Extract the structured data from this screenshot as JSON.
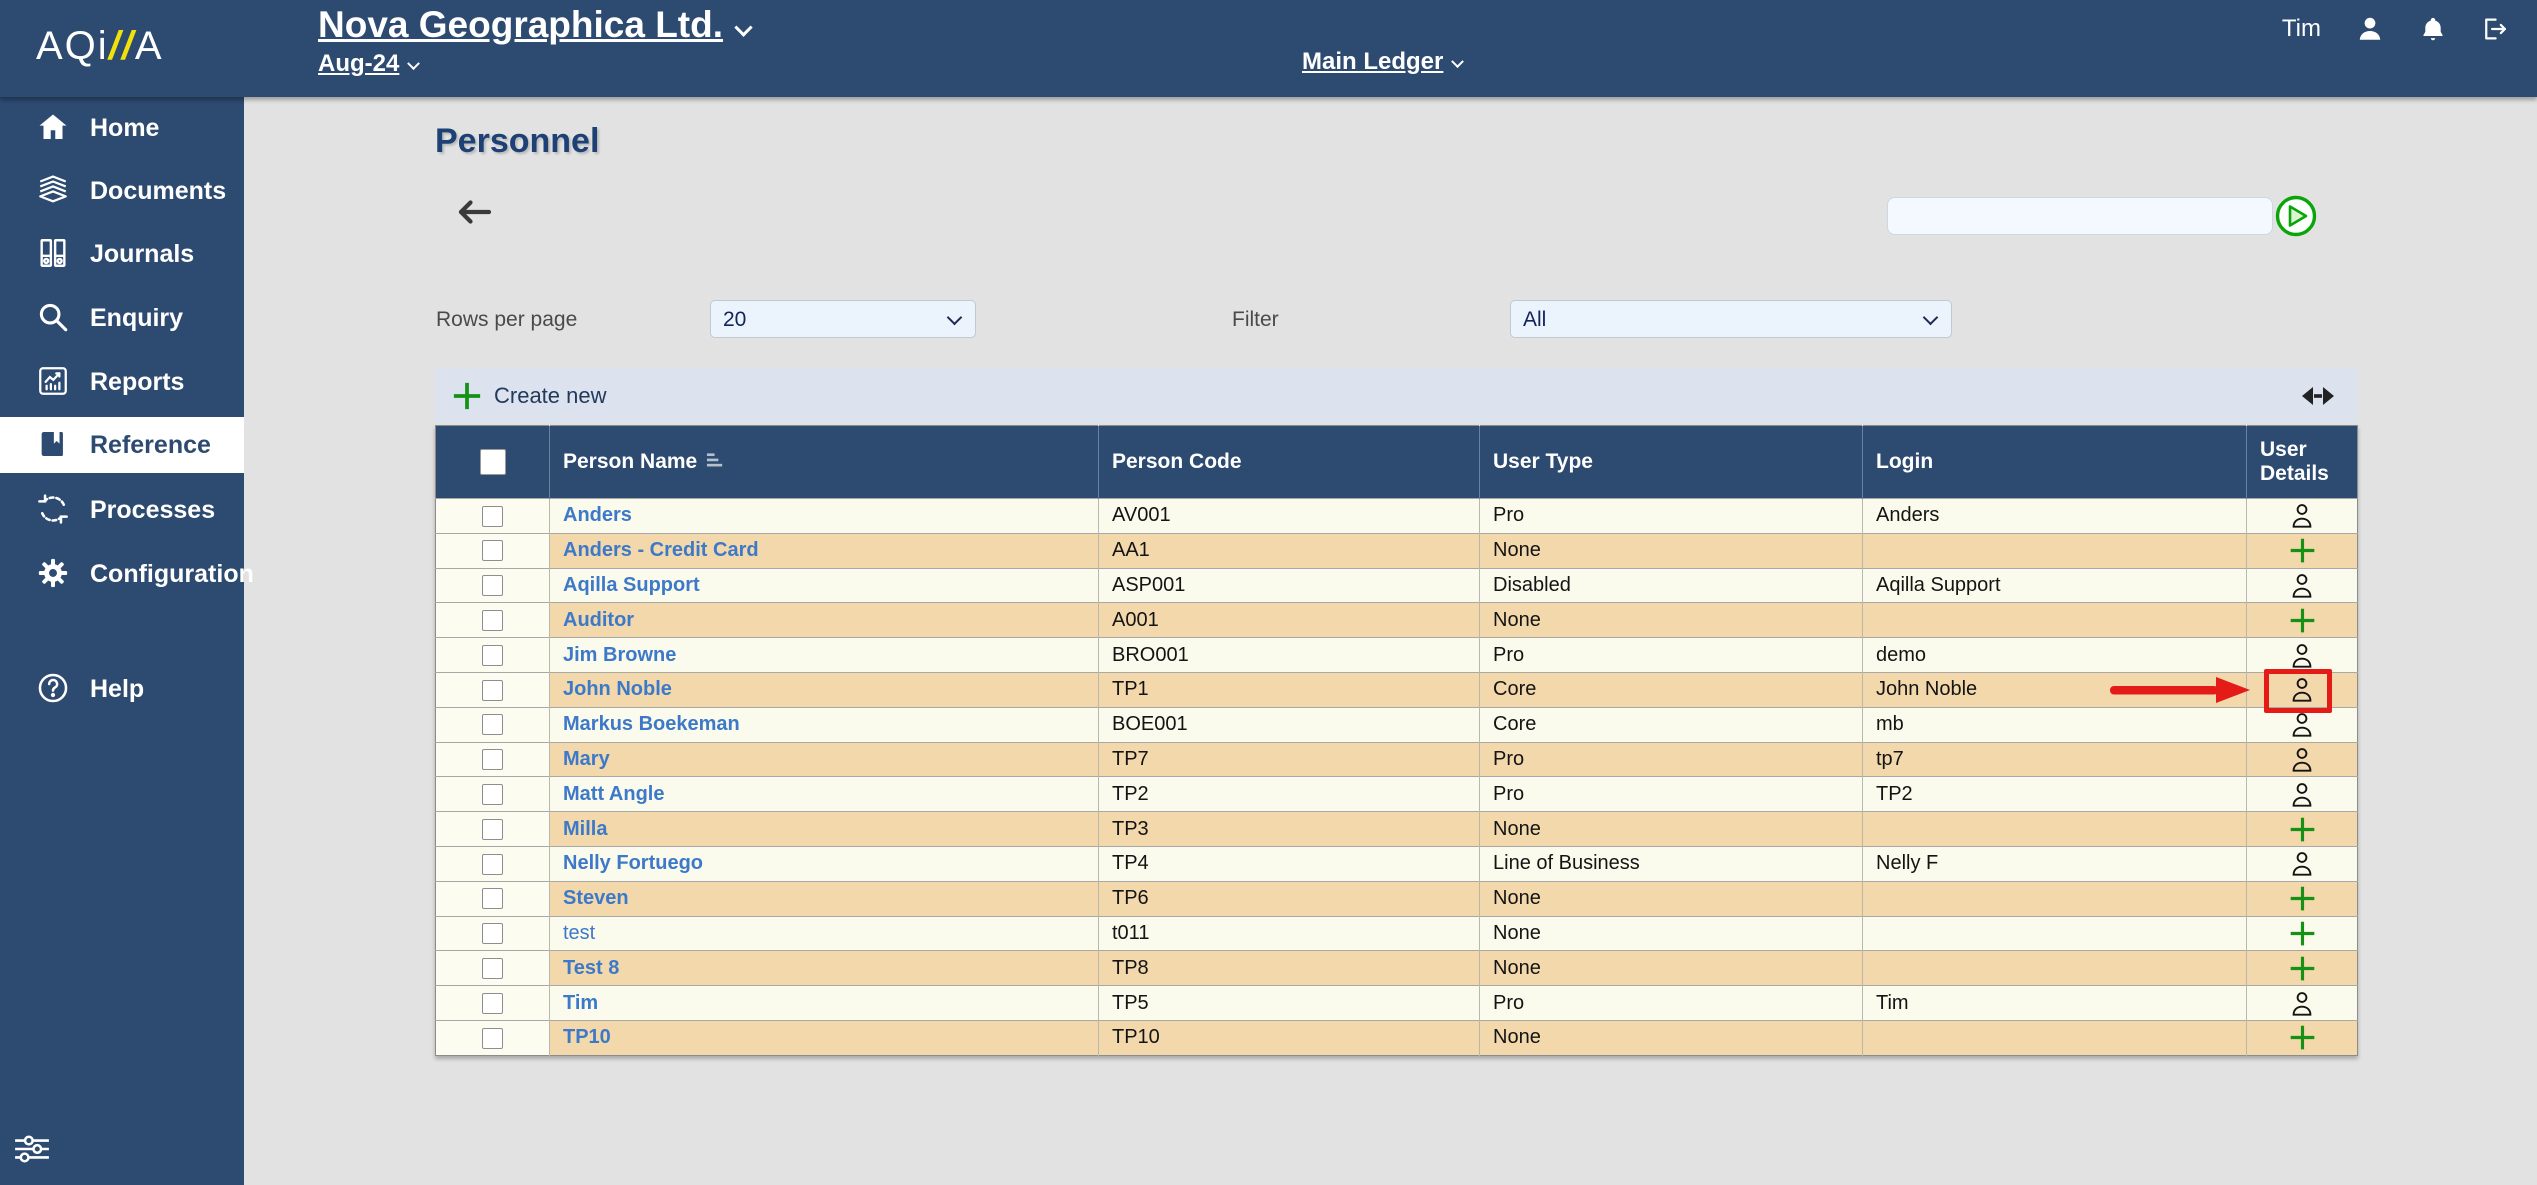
{
  "brand": {
    "logo_text_1": "AQi",
    "logo_slashes": "//",
    "logo_text_2": "A"
  },
  "header": {
    "company": "Nova Geographica Ltd.",
    "period": "Aug-24",
    "ledger": "Main Ledger",
    "username": "Tim"
  },
  "sidebar": {
    "items": [
      {
        "label": "Home",
        "icon": "home-icon"
      },
      {
        "label": "Documents",
        "icon": "documents-icon"
      },
      {
        "label": "Journals",
        "icon": "journals-icon"
      },
      {
        "label": "Enquiry",
        "icon": "enquiry-icon"
      },
      {
        "label": "Reports",
        "icon": "reports-icon"
      },
      {
        "label": "Reference",
        "icon": "reference-icon",
        "selected": true
      },
      {
        "label": "Processes",
        "icon": "processes-icon"
      },
      {
        "label": "Configuration",
        "icon": "configuration-icon"
      }
    ],
    "help_label": "Help"
  },
  "page": {
    "title": "Personnel"
  },
  "search": {
    "value": ""
  },
  "controls": {
    "rows_per_page": {
      "label": "Rows per page",
      "value": "20"
    },
    "filter": {
      "label": "Filter",
      "value": "All"
    }
  },
  "toolbar": {
    "create_new_label": "Create new"
  },
  "table": {
    "columns": [
      "Person Name",
      "Person Code",
      "User Type",
      "Login",
      "User Details"
    ],
    "rows": [
      {
        "name": "Anders",
        "code": "AV001",
        "user_type": "Pro",
        "login": "Anders",
        "details": "user"
      },
      {
        "name": "Anders - Credit Card",
        "code": "AA1",
        "user_type": "None",
        "login": "",
        "details": "add"
      },
      {
        "name": "Aqilla Support",
        "code": "ASP001",
        "user_type": "Disabled",
        "login": "Aqilla Support",
        "details": "user"
      },
      {
        "name": "Auditor",
        "code": "A001",
        "user_type": "None",
        "login": "",
        "details": "add"
      },
      {
        "name": "Jim Browne",
        "code": "BRO001",
        "user_type": "Pro",
        "login": "demo",
        "details": "user"
      },
      {
        "name": "John Noble",
        "code": "TP1",
        "user_type": "Core",
        "login": "John Noble",
        "details": "user",
        "highlighted": true
      },
      {
        "name": "Markus Boekeman",
        "code": "BOE001",
        "user_type": "Core",
        "login": "mb",
        "details": "user"
      },
      {
        "name": "Mary",
        "code": "TP7",
        "user_type": "Pro",
        "login": "tp7",
        "details": "user"
      },
      {
        "name": "Matt Angle",
        "code": "TP2",
        "user_type": "Pro",
        "login": "TP2",
        "details": "user"
      },
      {
        "name": "Milla",
        "code": "TP3",
        "user_type": "None",
        "login": "",
        "details": "add"
      },
      {
        "name": "Nelly Fortuego",
        "code": "TP4",
        "user_type": "Line of Business",
        "login": "Nelly F",
        "details": "user"
      },
      {
        "name": "Steven",
        "code": "TP6",
        "user_type": "None",
        "login": "",
        "details": "add"
      },
      {
        "name": "test",
        "code": "t011",
        "user_type": "None",
        "login": "",
        "details": "add",
        "bold": false
      },
      {
        "name": "Test 8",
        "code": "TP8",
        "user_type": "None",
        "login": "",
        "details": "add"
      },
      {
        "name": "Tim",
        "code": "TP5",
        "user_type": "Pro",
        "login": "Tim",
        "details": "user"
      },
      {
        "name": "TP10",
        "code": "TP10",
        "user_type": "None",
        "login": "",
        "details": "add"
      }
    ]
  },
  "colors": {
    "navy": "#2d4a71",
    "accent_green": "#169116",
    "alert_red": "#e41b17",
    "row_light": "#fafbec",
    "row_tan": "#f2d8ab",
    "link_blue": "#3d79c9",
    "logo_yellow": "#f0e10a"
  }
}
